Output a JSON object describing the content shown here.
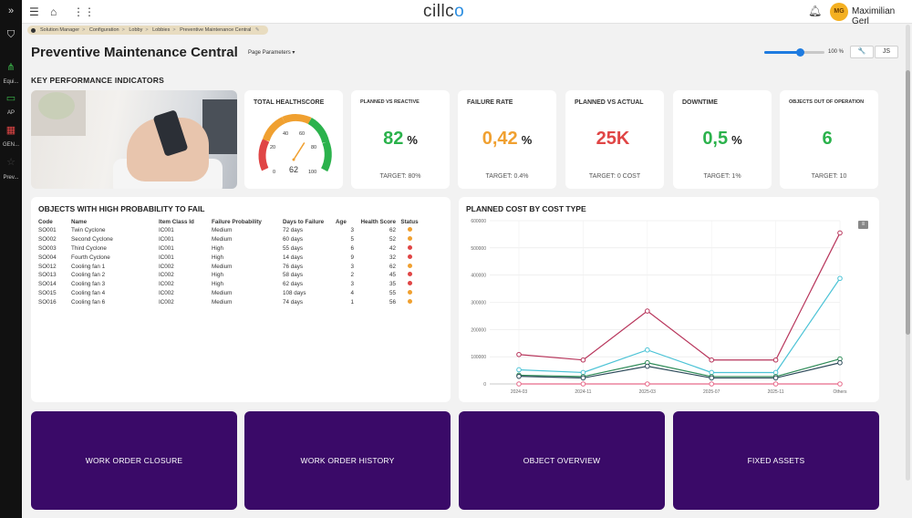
{
  "rail": {
    "items": [
      {
        "icon": "»",
        "label": ""
      },
      {
        "icon": "⛉",
        "label": ""
      },
      {
        "icon": "⋔",
        "label": "Equi..."
      },
      {
        "icon": "▭",
        "label": "AP"
      },
      {
        "icon": "▦",
        "label": "GEN..."
      },
      {
        "icon": "☆",
        "label": "Prev..."
      }
    ]
  },
  "topbar": {
    "logo_text": "cillc",
    "logo_accent": "o",
    "user_initials": "MG",
    "user_name": "Maximilian Gerl"
  },
  "breadcrumb": [
    "Solution Manager",
    "Configuration",
    "Lobby",
    "Lobbies",
    "Preventive Maintenance Central"
  ],
  "page": {
    "title": "Preventive Maintenance Central",
    "params_label": "Page Parameters ▾",
    "zoom": 100,
    "zoom_label": "100 %",
    "btn_wrench": "🔧",
    "btn_js": "JS"
  },
  "kpi_section_title": "KEY PERFORMANCE INDICATORS",
  "healthscore": {
    "title": "TOTAL HEALTHSCORE",
    "value": 62,
    "ticks": [
      "0",
      "20",
      "40",
      "60",
      "80",
      "100"
    ]
  },
  "kpis": [
    {
      "title": "PLANNED VS REACTIVE",
      "value": "82",
      "unit": "%",
      "target": "TARGET: 80%",
      "color": "#2bb24c",
      "small": true
    },
    {
      "title": "FAILURE RATE",
      "value": "0,42",
      "unit": "%",
      "target": "TARGET: 0.4%",
      "color": "#f0a030",
      "small": false
    },
    {
      "title": "PLANNED VS ACTUAL",
      "value": "25K",
      "unit": "",
      "target": "TARGET: 0 COST",
      "color": "#e04545",
      "small": false
    },
    {
      "title": "DOWNTIME",
      "value": "0,5",
      "unit": "%",
      "target": "TARGET: 1%",
      "color": "#2bb24c",
      "small": false
    },
    {
      "title": "OBJECTS OUT OF OPERATION",
      "value": "6",
      "unit": "",
      "target": "TARGET: 10",
      "color": "#2bb24c",
      "small": true
    }
  ],
  "objects_table": {
    "title": "OBJECTS WITH HIGH PROBABILITY TO FAIL",
    "columns": [
      "Code",
      "Name",
      "Item Class Id",
      "Failure Probability",
      "Days to Failure",
      "Age",
      "Health Score",
      "Status"
    ],
    "rows": [
      {
        "code": "SO001",
        "name": "Twin Cyclone",
        "cls": "IC001",
        "prob": "Medium",
        "days": "72 days",
        "age": "3",
        "score": "62",
        "status": "#f0a030"
      },
      {
        "code": "SO002",
        "name": "Second Cyclone",
        "cls": "IC001",
        "prob": "Medium",
        "days": "60 days",
        "age": "5",
        "score": "52",
        "status": "#f0a030"
      },
      {
        "code": "SO003",
        "name": "Third Cyclone",
        "cls": "IC001",
        "prob": "High",
        "days": "55 days",
        "age": "6",
        "score": "42",
        "status": "#e04545"
      },
      {
        "code": "SO004",
        "name": "Fourth Cyclone",
        "cls": "IC001",
        "prob": "High",
        "days": "14 days",
        "age": "9",
        "score": "32",
        "status": "#e04545"
      },
      {
        "code": "SO012",
        "name": "Cooling fan 1",
        "cls": "IC002",
        "prob": "Medium",
        "days": "76 days",
        "age": "3",
        "score": "62",
        "status": "#f0a030"
      },
      {
        "code": "SO013",
        "name": "Cooling fan 2",
        "cls": "IC002",
        "prob": "High",
        "days": "58 days",
        "age": "2",
        "score": "45",
        "status": "#e04545"
      },
      {
        "code": "SO014",
        "name": "Cooling fan 3",
        "cls": "IC002",
        "prob": "High",
        "days": "62 days",
        "age": "3",
        "score": "35",
        "status": "#e04545"
      },
      {
        "code": "SO015",
        "name": "Cooling fan 4",
        "cls": "IC002",
        "prob": "Medium",
        "days": "108 days",
        "age": "4",
        "score": "55",
        "status": "#f0a030"
      },
      {
        "code": "SO016",
        "name": "Cooling fan 6",
        "cls": "IC002",
        "prob": "Medium",
        "days": "74 days",
        "age": "1",
        "score": "56",
        "status": "#f0a030"
      }
    ]
  },
  "chart_data": {
    "type": "line",
    "title": "PLANNED COST BY COST TYPE",
    "categories": [
      "2024-03",
      "2024-11",
      "2025-03",
      "2025-07",
      "2025-11",
      "Others"
    ],
    "ylim": [
      0,
      600000
    ],
    "yticks": [
      0,
      100000,
      200000,
      300000,
      400000,
      500000,
      600000
    ],
    "ytick_labels": [
      "0",
      "100000",
      "200000",
      "300000",
      "400000",
      "500000",
      "600000"
    ],
    "grid": true,
    "legend": "none",
    "series": [
      {
        "values": [
          108000,
          88000,
          268000,
          88000,
          88000,
          555000
        ],
        "color": "#b8365c"
      },
      {
        "values": [
          52000,
          42000,
          125000,
          42000,
          42000,
          388000
        ],
        "color": "#4cc3d6"
      },
      {
        "values": [
          32000,
          27000,
          78000,
          27000,
          27000,
          92000
        ],
        "color": "#2e8b57"
      },
      {
        "values": [
          28000,
          22000,
          65000,
          22000,
          22000,
          78000
        ],
        "color": "#2d4a5a"
      },
      {
        "values": [
          0,
          0,
          0,
          0,
          0,
          0
        ],
        "color": "#e76a8a"
      }
    ]
  },
  "tiles": [
    "WORK ORDER CLOSURE",
    "WORK ORDER HISTORY",
    "OBJECT OVERVIEW",
    "FIXED ASSETS"
  ]
}
